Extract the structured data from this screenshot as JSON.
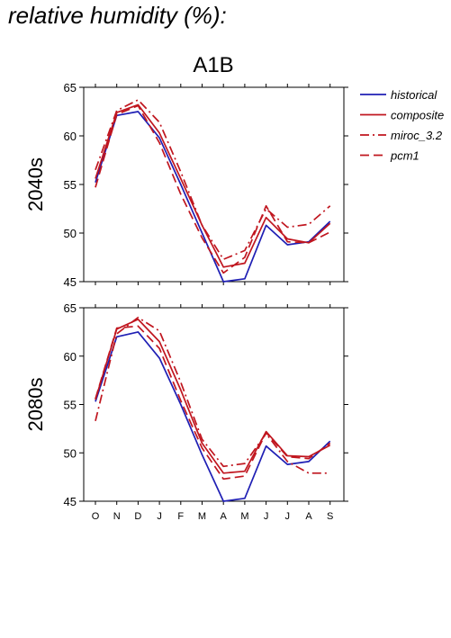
{
  "page": {
    "title": "relative humidity (%):"
  },
  "chart_data": {
    "type": "line",
    "title": "A1B",
    "x": [
      "O",
      "N",
      "D",
      "J",
      "F",
      "M",
      "A",
      "M",
      "J",
      "J",
      "A",
      "S"
    ],
    "ylim": [
      45,
      65
    ],
    "yticks": [
      45,
      50,
      55,
      60,
      65
    ],
    "legend_placement": "top-right",
    "legend": [
      {
        "name": "historical",
        "color": "#1f1fb4",
        "dash": "solid"
      },
      {
        "name": "composite",
        "color": "#c0161f",
        "dash": "solid"
      },
      {
        "name": "miroc_3.2",
        "color": "#c0161f",
        "dash": "dashdot"
      },
      {
        "name": "pcm1",
        "color": "#c0161f",
        "dash": "dash"
      }
    ],
    "panels": [
      {
        "ylabel": "2040s",
        "series": [
          {
            "name": "historical",
            "values": [
              55.2,
              62.1,
              62.5,
              59.8,
              55.0,
              50.0,
              45.0,
              45.3,
              50.8,
              48.8,
              49.1,
              51.2
            ]
          },
          {
            "name": "composite",
            "values": [
              55.6,
              62.4,
              63.2,
              60.3,
              55.6,
              50.8,
              46.5,
              46.9,
              51.6,
              49.4,
              49.0,
              51.0
            ]
          },
          {
            "name": "miroc_3.2",
            "values": [
              56.5,
              62.6,
              63.7,
              61.4,
              56.3,
              50.8,
              47.3,
              48.2,
              52.5,
              50.6,
              50.9,
              52.8
            ]
          },
          {
            "name": "pcm1",
            "values": [
              54.7,
              62.2,
              63.1,
              59.3,
              54.0,
              49.5,
              45.9,
              47.5,
              52.8,
              49.1,
              49.0,
              50.1
            ]
          }
        ]
      },
      {
        "ylabel": "2080s",
        "series": [
          {
            "name": "historical",
            "values": [
              55.3,
              62.0,
              62.5,
              59.8,
              55.0,
              49.8,
              45.0,
              45.3,
              50.7,
              48.8,
              49.1,
              51.2
            ]
          },
          {
            "name": "composite",
            "values": [
              55.5,
              62.8,
              63.8,
              61.5,
              56.5,
              51.0,
              47.9,
              48.1,
              52.2,
              49.7,
              49.6,
              50.8
            ]
          },
          {
            "name": "miroc_3.2",
            "values": [
              53.3,
              62.3,
              64.0,
              62.6,
              57.3,
              51.4,
              48.6,
              48.9,
              52.0,
              49.1,
              47.9,
              47.9
            ]
          },
          {
            "name": "pcm1",
            "values": [
              55.6,
              62.9,
              63.1,
              60.8,
              55.4,
              50.5,
              47.3,
              47.6,
              52.1,
              49.6,
              49.4,
              51.0
            ]
          }
        ]
      }
    ]
  }
}
